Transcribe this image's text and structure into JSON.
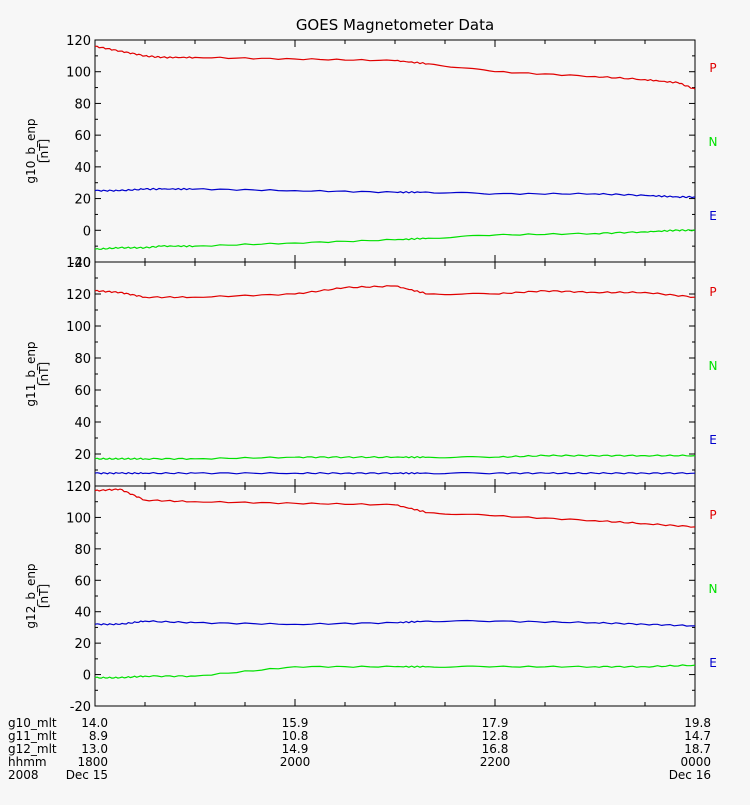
{
  "title": "GOES Magnetometer Data",
  "colors": {
    "P": "#e00000",
    "N": "#00e000",
    "E": "#0000cc",
    "axis": "#000000",
    "background": "#f7f7f7"
  },
  "chart_data": [
    {
      "type": "line",
      "ylabel": "g10_b_enp",
      "yunit": "[nT]",
      "ylim": [
        -20,
        120
      ],
      "yticks": [
        -20,
        0,
        20,
        40,
        60,
        80,
        100,
        120
      ],
      "xlim": [
        0,
        360
      ],
      "x": [
        0,
        15,
        30,
        40,
        60,
        120,
        180,
        200,
        240,
        300,
        330,
        350,
        360
      ],
      "series": [
        {
          "name": "P",
          "values": [
            116,
            113,
            110,
            109,
            109,
            108,
            107,
            105,
            100,
            97,
            95,
            93,
            89
          ]
        },
        {
          "name": "N",
          "values": [
            -12,
            -11,
            -11,
            -10,
            -10,
            -8,
            -6,
            -5,
            -3,
            -2,
            -1,
            0,
            0
          ]
        },
        {
          "name": "E",
          "values": [
            25,
            25,
            26,
            26,
            26,
            25,
            24,
            24,
            23,
            23,
            22,
            21,
            21
          ]
        }
      ]
    },
    {
      "type": "line",
      "ylabel": "g11_b_enp",
      "yunit": "[nT]",
      "ylim": [
        0,
        140
      ],
      "yticks": [
        0,
        20,
        40,
        60,
        80,
        100,
        120,
        140
      ],
      "xlim": [
        0,
        360
      ],
      "x": [
        0,
        15,
        30,
        60,
        120,
        150,
        180,
        200,
        240,
        270,
        300,
        330,
        360
      ],
      "series": [
        {
          "name": "P",
          "values": [
            122,
            121,
            118,
            118,
            120,
            124,
            125,
            120,
            120,
            122,
            121,
            121,
            118
          ]
        },
        {
          "name": "N",
          "values": [
            17,
            17,
            17,
            17,
            18,
            18,
            18,
            18,
            18,
            19,
            19,
            19,
            19
          ]
        },
        {
          "name": "E",
          "values": [
            8,
            8,
            8,
            8,
            8,
            8,
            8,
            8,
            8,
            8,
            8,
            8,
            8
          ]
        }
      ]
    },
    {
      "type": "line",
      "ylabel": "g12_b_enp",
      "yunit": "[nT]",
      "ylim": [
        -20,
        120
      ],
      "yticks": [
        -20,
        0,
        20,
        40,
        60,
        80,
        100,
        120
      ],
      "xlim": [
        0,
        360
      ],
      "x": [
        0,
        15,
        30,
        60,
        120,
        180,
        200,
        240,
        300,
        330,
        360
      ],
      "series": [
        {
          "name": "P",
          "values": [
            117,
            118,
            111,
            110,
            109,
            108,
            103,
            101,
            98,
            96,
            94
          ]
        },
        {
          "name": "N",
          "values": [
            -2,
            -2,
            -1,
            -1,
            5,
            5,
            5,
            5,
            5,
            5,
            6
          ]
        },
        {
          "name": "E",
          "values": [
            32,
            32,
            34,
            33,
            32,
            33,
            34,
            34,
            33,
            32,
            31
          ]
        }
      ]
    }
  ],
  "x_axis_rows": [
    {
      "label": "g10_mlt",
      "values": [
        "14.0",
        "15.9",
        "17.9",
        "19.8"
      ]
    },
    {
      "label": "g11_mlt",
      "values": [
        "8.9",
        "10.8",
        "12.8",
        "14.7"
      ]
    },
    {
      "label": "g12_mlt",
      "values": [
        "13.0",
        "14.9",
        "16.8",
        "18.7"
      ]
    },
    {
      "label": "hhmm",
      "values": [
        "1800",
        "2000",
        "2200",
        "0000"
      ]
    },
    {
      "label": "2008",
      "values": [
        "Dec 15",
        "",
        "",
        "Dec 16"
      ]
    }
  ],
  "x_major_ticks": [
    0,
    120,
    240,
    360
  ],
  "x_minor_ticks": [
    0,
    30,
    60,
    90,
    120,
    150,
    180,
    210,
    240,
    270,
    300,
    330,
    360
  ]
}
